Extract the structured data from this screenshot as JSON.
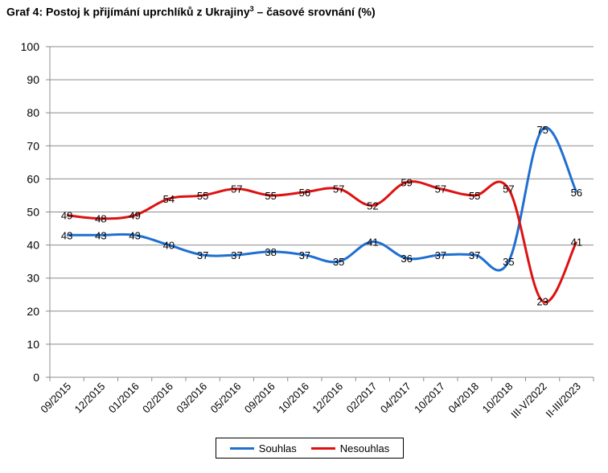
{
  "title_text": "Graf 4: Postoj k přijímání uprchlíků z Ukrajiny",
  "title_sup": "3",
  "title_suffix": " – časové srovnání (%)",
  "chart_data": {
    "type": "line",
    "title": "Graf 4: Postoj k přijímání uprchlíků z Ukrajiny3 – časové srovnání (%)",
    "xlabel": "",
    "ylabel": "",
    "ylim": [
      0,
      100
    ],
    "yticks": [
      0,
      10,
      20,
      30,
      40,
      50,
      60,
      70,
      80,
      90,
      100
    ],
    "grid": true,
    "legend_position": "bottom",
    "categories": [
      "09/2015",
      "12/2015",
      "01/2016",
      "02/2016",
      "03/2016",
      "05/2016",
      "09/2016",
      "10/2016",
      "12/2016",
      "02/2017",
      "04/2017",
      "10/2017",
      "04/2018",
      "10/2018",
      "III-V/2022",
      "II-III/2023"
    ],
    "series": [
      {
        "name": "Souhlas",
        "color": "#1f6fd1",
        "values": [
          43,
          43,
          43,
          40,
          37,
          37,
          38,
          37,
          35,
          41,
          36,
          37,
          37,
          35,
          75,
          56
        ]
      },
      {
        "name": "Nesouhlas",
        "color": "#dd1111",
        "values": [
          49,
          48,
          49,
          54,
          55,
          57,
          55,
          56,
          57,
          52,
          59,
          57,
          55,
          57,
          23,
          41
        ]
      }
    ]
  }
}
